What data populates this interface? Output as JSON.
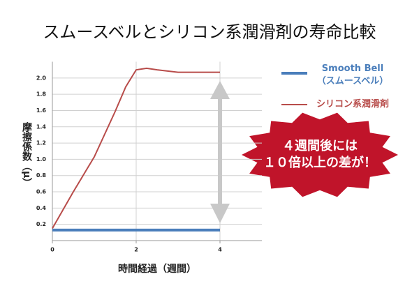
{
  "chart_data": {
    "type": "line",
    "title": "スムースベルとシリコン系潤滑剤の寿命比較",
    "x_label": "時間経過（週間）",
    "y_label": "摩擦係数（μ）",
    "annotation": "４週間後には\n１０倍以上の差が！",
    "xlim": [
      0,
      5
    ],
    "xticks": [
      0,
      2,
      4
    ],
    "ylim": [
      0,
      2.2
    ],
    "yticks": [
      0.2,
      0.4,
      0.6,
      0.8,
      {
        "value": 1,
        "label": "1.0"
      },
      1.2,
      1.4,
      1.6,
      1.8,
      {
        "value": 2,
        "label": "2.0"
      }
    ],
    "grid": true,
    "series": [
      {
        "name": "Smooth Bell\n（スムースベル）",
        "color": "#4a7ebb",
        "x": [
          0,
          4
        ],
        "values": [
          0.13,
          0.13
        ]
      },
      {
        "name": "シリコン系潤滑剤",
        "color": "#b84c4a",
        "x": [
          0,
          0.5,
          1,
          1.5,
          1.75,
          2,
          2.25,
          2.5,
          3,
          4
        ],
        "values": [
          0.15,
          0.6,
          1.03,
          1.59,
          1.89,
          2.1,
          2.12,
          2.1,
          2.07,
          2.07
        ]
      }
    ]
  }
}
